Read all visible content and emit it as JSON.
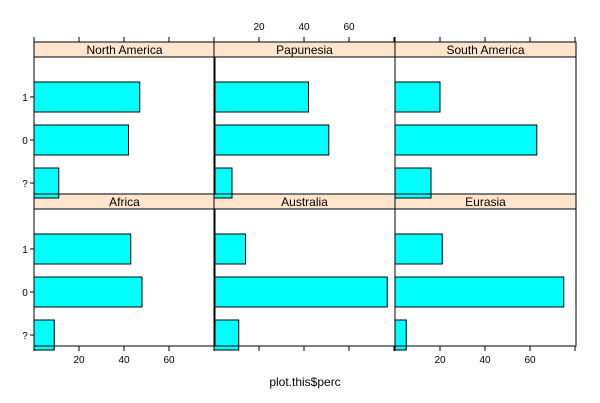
{
  "chart_data": {
    "type": "bar",
    "orientation": "horizontal",
    "xlabel": "plot.this$perc",
    "ylabel": "",
    "xlim": [
      0,
      80
    ],
    "x_ticks": [
      20,
      40,
      60
    ],
    "x_tick_labels": [
      "20",
      "40",
      "60"
    ],
    "categories": [
      "1",
      "0",
      "?"
    ],
    "bar_color": "#00ffff",
    "strip_color": "#ffe5cc",
    "panels": [
      {
        "name": "Africa",
        "values": [
          43,
          48,
          9
        ]
      },
      {
        "name": "Australia",
        "values": [
          14,
          77,
          11
        ]
      },
      {
        "name": "Eurasia",
        "values": [
          21,
          75,
          5
        ]
      },
      {
        "name": "North America",
        "values": [
          47,
          42,
          11
        ]
      },
      {
        "name": "Papunesia",
        "values": [
          42,
          51,
          8
        ]
      },
      {
        "name": "South America",
        "values": [
          20,
          63,
          16
        ]
      }
    ]
  }
}
